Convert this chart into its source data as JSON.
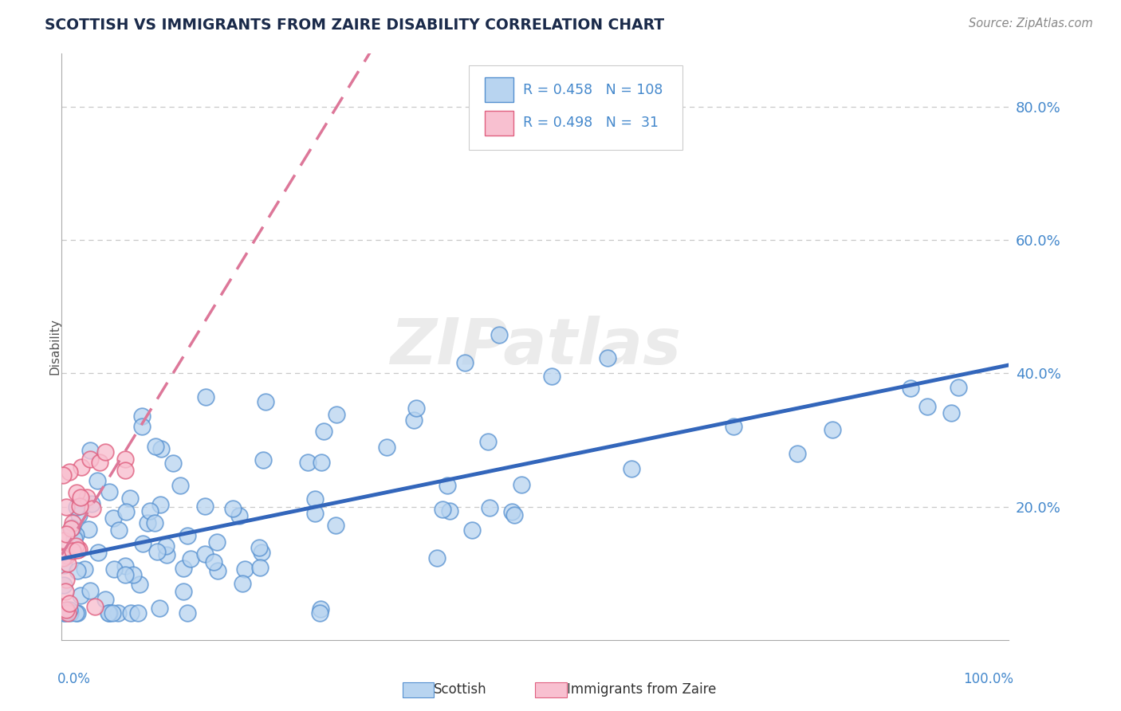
{
  "title": "SCOTTISH VS IMMIGRANTS FROM ZAIRE DISABILITY CORRELATION CHART",
  "source": "Source: ZipAtlas.com",
  "ylabel": "Disability",
  "xlim": [
    0.0,
    1.0
  ],
  "ylim": [
    0.0,
    0.88
  ],
  "ytick_values": [
    0.2,
    0.4,
    0.6,
    0.8
  ],
  "background_color": "#ffffff",
  "grid_color": "#c8c8c8",
  "scottish_fill": "#b8d4f0",
  "scottish_edge": "#5590d0",
  "zaire_fill": "#f8c0d0",
  "zaire_edge": "#e06080",
  "line_scottish_color": "#3366bb",
  "line_zaire_color": "#dd7799",
  "r_scottish": 0.458,
  "n_scottish": 108,
  "r_zaire": 0.498,
  "n_zaire": 31,
  "legend_text_color": "#4488cc",
  "watermark_text": "ZIPatlas",
  "watermark_color": "#d8d8d8"
}
